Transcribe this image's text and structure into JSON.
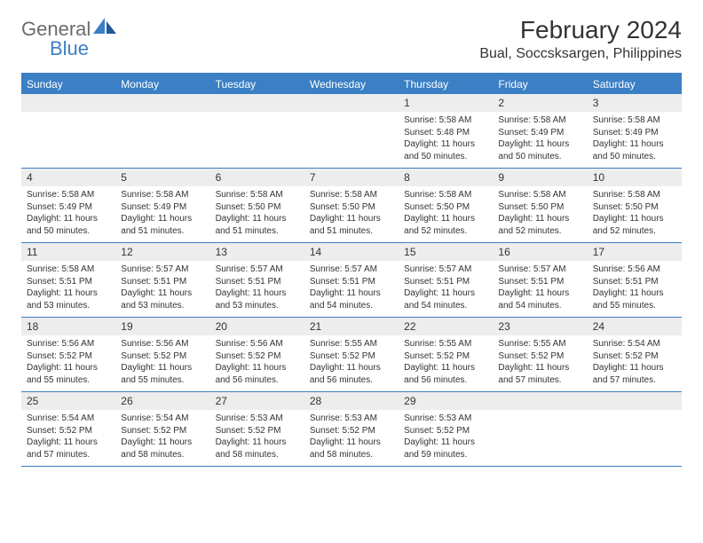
{
  "logo": {
    "text_general": "General",
    "text_blue": "Blue"
  },
  "header": {
    "month_title": "February 2024",
    "location": "Bual, Soccsksargen, Philippines"
  },
  "colors": {
    "brand_blue": "#3b7fc4",
    "header_row_bg": "#3b7fc4",
    "daynum_bg": "#ededed",
    "text": "#333333",
    "logo_grey": "#6b6b6b"
  },
  "daynames": [
    "Sunday",
    "Monday",
    "Tuesday",
    "Wednesday",
    "Thursday",
    "Friday",
    "Saturday"
  ],
  "weeks": [
    [
      null,
      null,
      null,
      null,
      {
        "n": "1",
        "sunrise": "Sunrise: 5:58 AM",
        "sunset": "Sunset: 5:48 PM",
        "daylight": "Daylight: 11 hours and 50 minutes."
      },
      {
        "n": "2",
        "sunrise": "Sunrise: 5:58 AM",
        "sunset": "Sunset: 5:49 PM",
        "daylight": "Daylight: 11 hours and 50 minutes."
      },
      {
        "n": "3",
        "sunrise": "Sunrise: 5:58 AM",
        "sunset": "Sunset: 5:49 PM",
        "daylight": "Daylight: 11 hours and 50 minutes."
      }
    ],
    [
      {
        "n": "4",
        "sunrise": "Sunrise: 5:58 AM",
        "sunset": "Sunset: 5:49 PM",
        "daylight": "Daylight: 11 hours and 50 minutes."
      },
      {
        "n": "5",
        "sunrise": "Sunrise: 5:58 AM",
        "sunset": "Sunset: 5:49 PM",
        "daylight": "Daylight: 11 hours and 51 minutes."
      },
      {
        "n": "6",
        "sunrise": "Sunrise: 5:58 AM",
        "sunset": "Sunset: 5:50 PM",
        "daylight": "Daylight: 11 hours and 51 minutes."
      },
      {
        "n": "7",
        "sunrise": "Sunrise: 5:58 AM",
        "sunset": "Sunset: 5:50 PM",
        "daylight": "Daylight: 11 hours and 51 minutes."
      },
      {
        "n": "8",
        "sunrise": "Sunrise: 5:58 AM",
        "sunset": "Sunset: 5:50 PM",
        "daylight": "Daylight: 11 hours and 52 minutes."
      },
      {
        "n": "9",
        "sunrise": "Sunrise: 5:58 AM",
        "sunset": "Sunset: 5:50 PM",
        "daylight": "Daylight: 11 hours and 52 minutes."
      },
      {
        "n": "10",
        "sunrise": "Sunrise: 5:58 AM",
        "sunset": "Sunset: 5:50 PM",
        "daylight": "Daylight: 11 hours and 52 minutes."
      }
    ],
    [
      {
        "n": "11",
        "sunrise": "Sunrise: 5:58 AM",
        "sunset": "Sunset: 5:51 PM",
        "daylight": "Daylight: 11 hours and 53 minutes."
      },
      {
        "n": "12",
        "sunrise": "Sunrise: 5:57 AM",
        "sunset": "Sunset: 5:51 PM",
        "daylight": "Daylight: 11 hours and 53 minutes."
      },
      {
        "n": "13",
        "sunrise": "Sunrise: 5:57 AM",
        "sunset": "Sunset: 5:51 PM",
        "daylight": "Daylight: 11 hours and 53 minutes."
      },
      {
        "n": "14",
        "sunrise": "Sunrise: 5:57 AM",
        "sunset": "Sunset: 5:51 PM",
        "daylight": "Daylight: 11 hours and 54 minutes."
      },
      {
        "n": "15",
        "sunrise": "Sunrise: 5:57 AM",
        "sunset": "Sunset: 5:51 PM",
        "daylight": "Daylight: 11 hours and 54 minutes."
      },
      {
        "n": "16",
        "sunrise": "Sunrise: 5:57 AM",
        "sunset": "Sunset: 5:51 PM",
        "daylight": "Daylight: 11 hours and 54 minutes."
      },
      {
        "n": "17",
        "sunrise": "Sunrise: 5:56 AM",
        "sunset": "Sunset: 5:51 PM",
        "daylight": "Daylight: 11 hours and 55 minutes."
      }
    ],
    [
      {
        "n": "18",
        "sunrise": "Sunrise: 5:56 AM",
        "sunset": "Sunset: 5:52 PM",
        "daylight": "Daylight: 11 hours and 55 minutes."
      },
      {
        "n": "19",
        "sunrise": "Sunrise: 5:56 AM",
        "sunset": "Sunset: 5:52 PM",
        "daylight": "Daylight: 11 hours and 55 minutes."
      },
      {
        "n": "20",
        "sunrise": "Sunrise: 5:56 AM",
        "sunset": "Sunset: 5:52 PM",
        "daylight": "Daylight: 11 hours and 56 minutes."
      },
      {
        "n": "21",
        "sunrise": "Sunrise: 5:55 AM",
        "sunset": "Sunset: 5:52 PM",
        "daylight": "Daylight: 11 hours and 56 minutes."
      },
      {
        "n": "22",
        "sunrise": "Sunrise: 5:55 AM",
        "sunset": "Sunset: 5:52 PM",
        "daylight": "Daylight: 11 hours and 56 minutes."
      },
      {
        "n": "23",
        "sunrise": "Sunrise: 5:55 AM",
        "sunset": "Sunset: 5:52 PM",
        "daylight": "Daylight: 11 hours and 57 minutes."
      },
      {
        "n": "24",
        "sunrise": "Sunrise: 5:54 AM",
        "sunset": "Sunset: 5:52 PM",
        "daylight": "Daylight: 11 hours and 57 minutes."
      }
    ],
    [
      {
        "n": "25",
        "sunrise": "Sunrise: 5:54 AM",
        "sunset": "Sunset: 5:52 PM",
        "daylight": "Daylight: 11 hours and 57 minutes."
      },
      {
        "n": "26",
        "sunrise": "Sunrise: 5:54 AM",
        "sunset": "Sunset: 5:52 PM",
        "daylight": "Daylight: 11 hours and 58 minutes."
      },
      {
        "n": "27",
        "sunrise": "Sunrise: 5:53 AM",
        "sunset": "Sunset: 5:52 PM",
        "daylight": "Daylight: 11 hours and 58 minutes."
      },
      {
        "n": "28",
        "sunrise": "Sunrise: 5:53 AM",
        "sunset": "Sunset: 5:52 PM",
        "daylight": "Daylight: 11 hours and 58 minutes."
      },
      {
        "n": "29",
        "sunrise": "Sunrise: 5:53 AM",
        "sunset": "Sunset: 5:52 PM",
        "daylight": "Daylight: 11 hours and 59 minutes."
      },
      null,
      null
    ]
  ]
}
